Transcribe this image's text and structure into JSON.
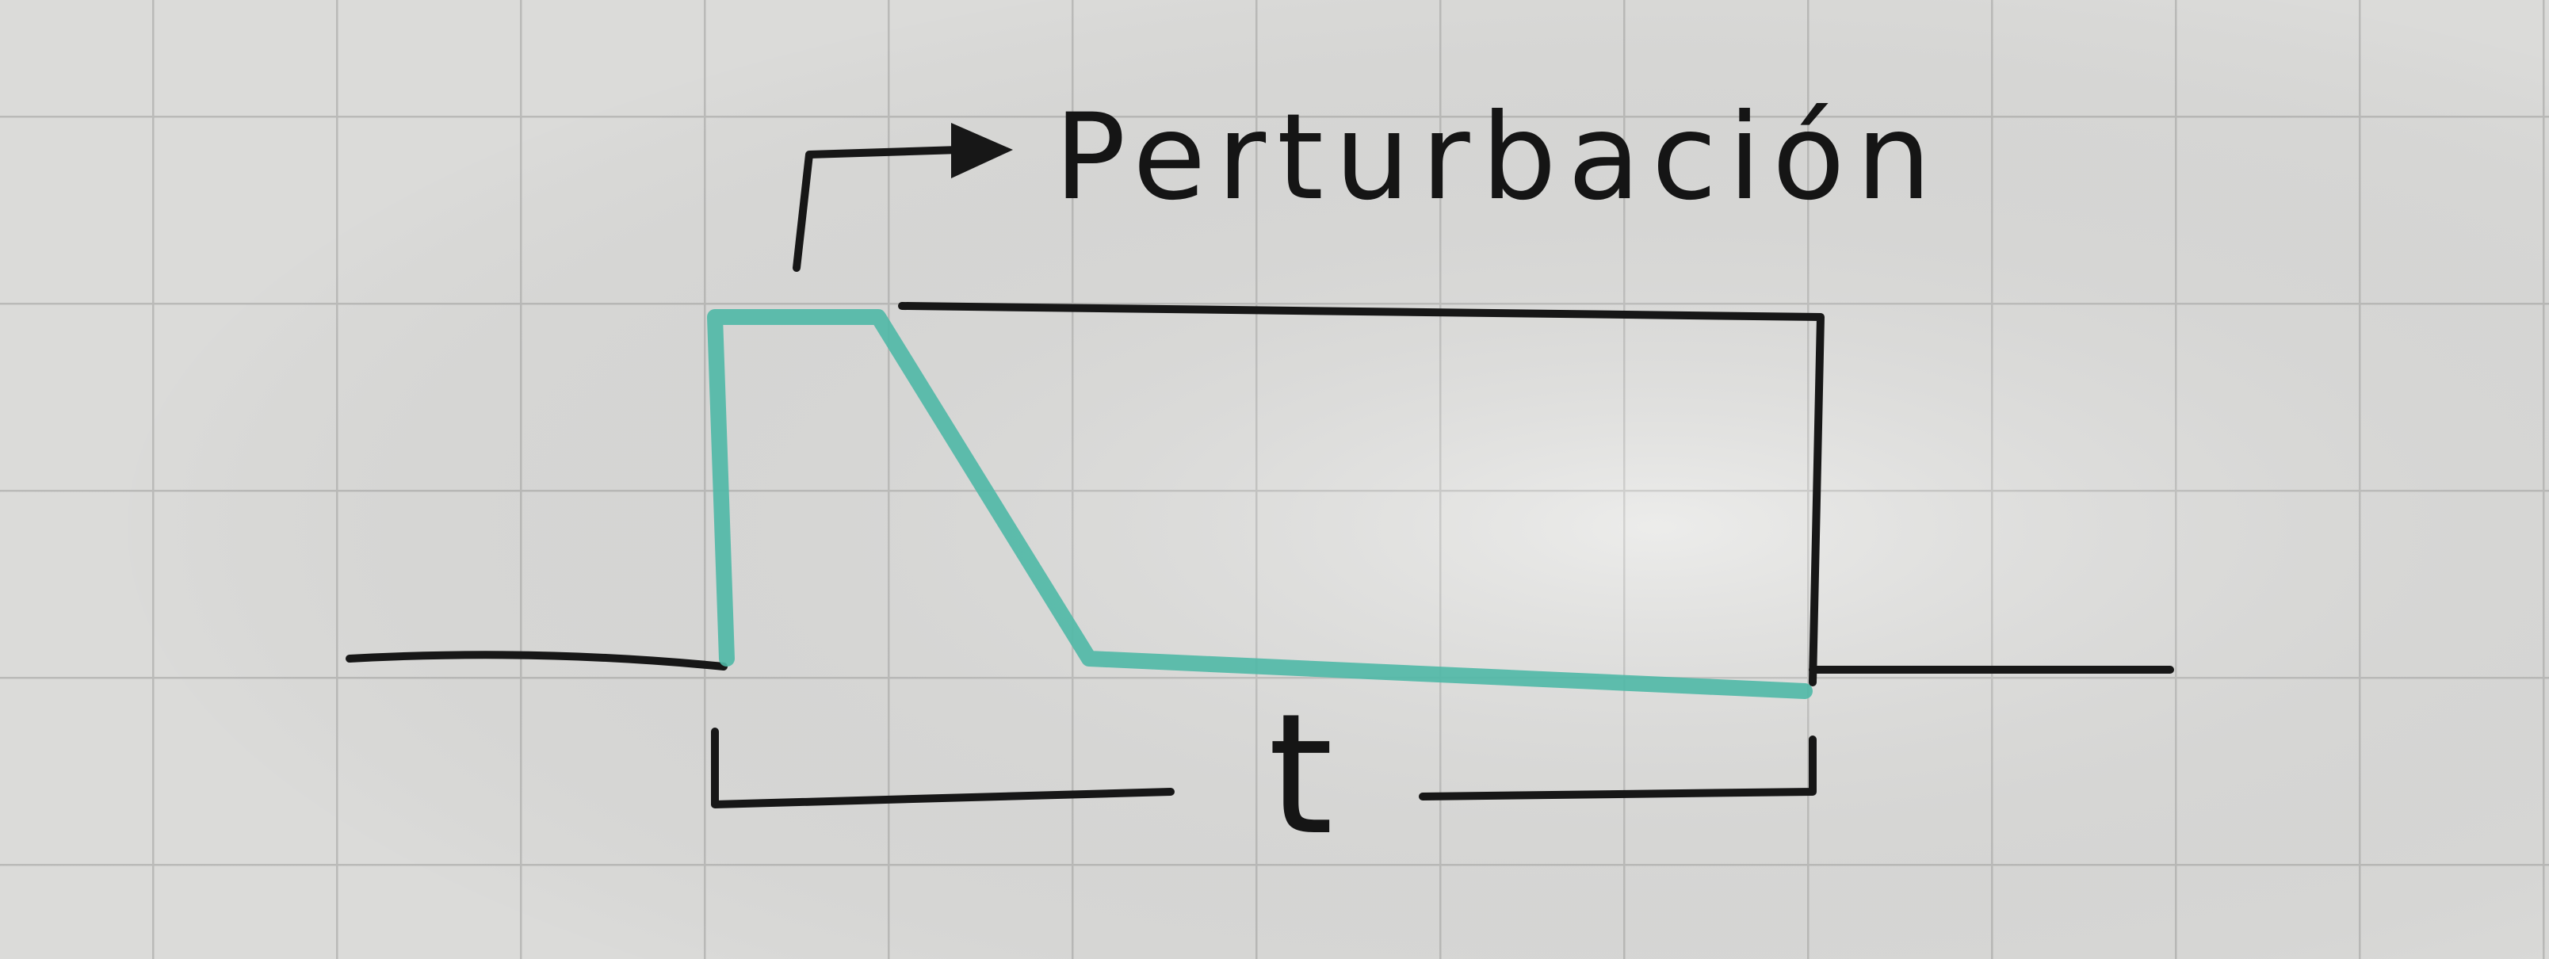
{
  "label": "Perturbación",
  "time_label": "t"
}
